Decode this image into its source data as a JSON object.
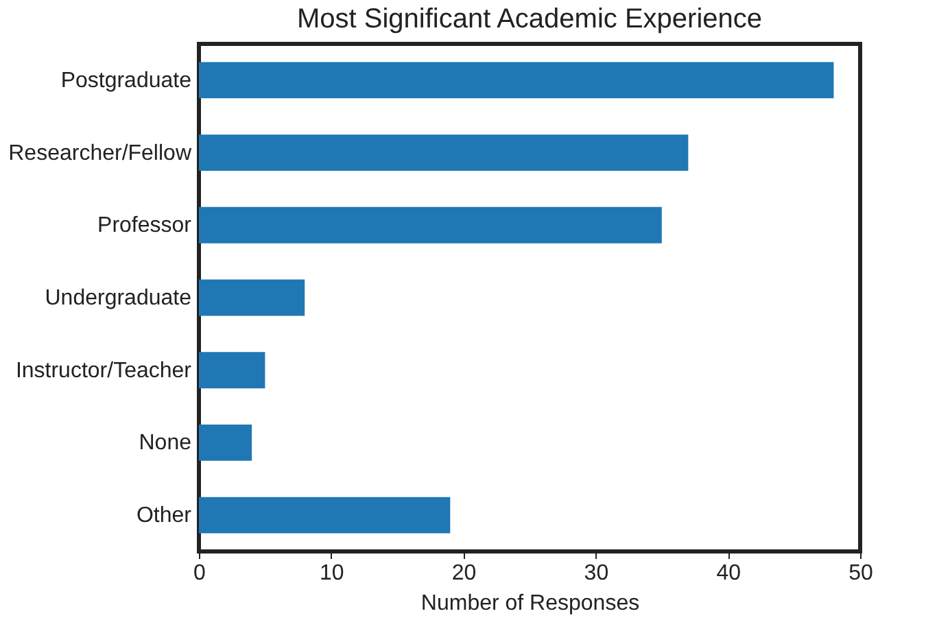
{
  "chart_data": {
    "type": "bar",
    "orientation": "horizontal",
    "title": "Most Significant Academic Experience",
    "xlabel": "Number of Responses",
    "categories": [
      "Postgraduate",
      "Researcher/Fellow",
      "Professor",
      "Undergraduate",
      "Instructor/Teacher",
      "None",
      "Other"
    ],
    "values": [
      48,
      37,
      35,
      8,
      5,
      4,
      19
    ],
    "color": "#1f77b4",
    "xlim": [
      0,
      50
    ],
    "xticks": [
      0,
      10,
      20,
      30,
      40,
      50
    ],
    "grid": false
  }
}
